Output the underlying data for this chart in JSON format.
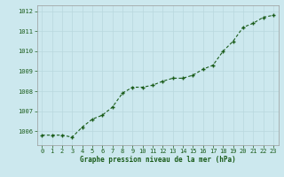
{
  "x": [
    0,
    1,
    2,
    3,
    4,
    5,
    6,
    7,
    8,
    9,
    10,
    11,
    12,
    13,
    14,
    15,
    16,
    17,
    18,
    19,
    20,
    21,
    22,
    23
  ],
  "y": [
    1005.8,
    1005.8,
    1005.8,
    1005.7,
    1006.2,
    1006.6,
    1006.8,
    1007.2,
    1007.9,
    1008.2,
    1008.2,
    1008.3,
    1008.5,
    1008.65,
    1008.65,
    1008.8,
    1009.1,
    1009.3,
    1010.0,
    1010.5,
    1011.2,
    1011.4,
    1011.7,
    1011.8
  ],
  "line_color": "#1a5c1a",
  "marker_color": "#1a5c1a",
  "bg_color": "#cce8ee",
  "grid_color": "#b8d8de",
  "axis_label_color": "#1a5c1a",
  "ylabel_ticks": [
    1006,
    1007,
    1008,
    1009,
    1010,
    1011,
    1012
  ],
  "xlim": [
    -0.5,
    23.5
  ],
  "ylim": [
    1005.3,
    1012.3
  ],
  "xlabel": "Graphe pression niveau de la mer (hPa)",
  "tick_fontsize": 5.0,
  "xlabel_fontsize": 5.5
}
